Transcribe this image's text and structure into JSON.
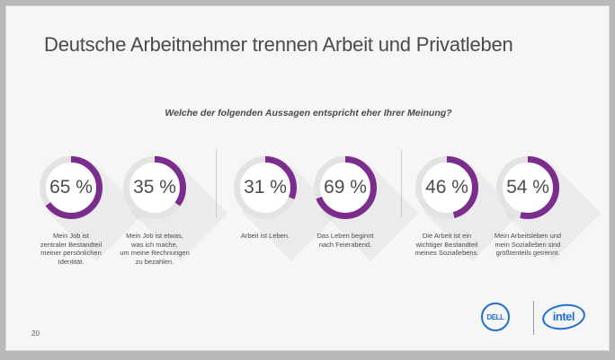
{
  "slide": {
    "title": "Deutsche Arbeitnehmer trennen Arbeit und Privatleben",
    "question": "Welche der folgenden Aussagen entspricht eher Ihrer Meinung?",
    "page_number": "20"
  },
  "logos": {
    "dell": "DELL",
    "intel": "intel"
  },
  "colors": {
    "accent": "#7b2d8e",
    "track": "#e3e3e3",
    "text": "#4a4a4a"
  },
  "chart_data": {
    "type": "donut",
    "items": [
      {
        "value": 65,
        "label": "65 %",
        "description": "Mein Job ist\nzentraler Bestandteil\nmeiner persönlichen\nIdentität."
      },
      {
        "value": 35,
        "label": "35 %",
        "description": "Mein Job ist etwas,\nwas ich mache,\num meine Rechnungen\nzu bezahlen."
      },
      {
        "value": 31,
        "label": "31 %",
        "description": "Arbeit ist Leben."
      },
      {
        "value": 69,
        "label": "69 %",
        "description": "Das Leben beginnt\nnach Feierabend."
      },
      {
        "value": 46,
        "label": "46 %",
        "description": "Die Arbeit ist ein\nwichtiger Bestandteil\nmeines Soziallebens."
      },
      {
        "value": 54,
        "label": "54 %",
        "description": "Mein Arbeitsleben und\nmein Sozialleben sind\ngrößtenteils getrennt."
      }
    ]
  }
}
